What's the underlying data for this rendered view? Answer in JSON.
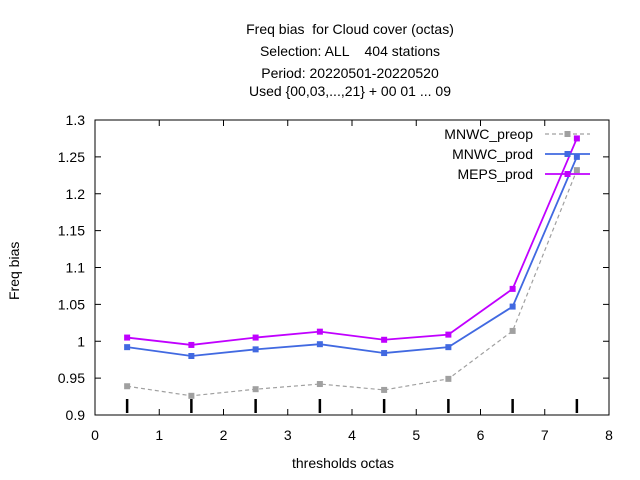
{
  "chart_data": {
    "type": "line",
    "title_lines": [
      "Freq bias  for Cloud cover (octas)",
      "Selection: ALL    404 stations",
      "Period: 20220501-20220520",
      "Used {00,03,...,21} + 00 01 ... 09"
    ],
    "xlabel": "thresholds octas",
    "ylabel": "Freq bias",
    "xlim": [
      0,
      8
    ],
    "ylim": [
      0.9,
      1.3
    ],
    "xticks": [
      0,
      1,
      2,
      3,
      4,
      5,
      6,
      7,
      8
    ],
    "yticks": [
      0.9,
      0.95,
      1,
      1.05,
      1.1,
      1.15,
      1.2,
      1.25,
      1.3
    ],
    "x": [
      0.5,
      1.5,
      2.5,
      3.5,
      4.5,
      5.5,
      6.5,
      7.5
    ],
    "legend_position": "top-right",
    "grid": false,
    "series": [
      {
        "name": "MNWC_preop",
        "color": "#a0a0a0",
        "dashed": true,
        "values": [
          0.939,
          0.926,
          0.935,
          0.942,
          0.934,
          0.949,
          1.014,
          1.232
        ]
      },
      {
        "name": "MNWC_prod",
        "color": "#4169e1",
        "dashed": false,
        "values": [
          0.992,
          0.98,
          0.989,
          0.996,
          0.984,
          0.992,
          1.047,
          1.25
        ]
      },
      {
        "name": "MEPS_prod",
        "color": "#c000ff",
        "dashed": false,
        "values": [
          1.005,
          0.995,
          1.005,
          1.013,
          1.002,
          1.009,
          1.071,
          1.275
        ]
      }
    ]
  }
}
